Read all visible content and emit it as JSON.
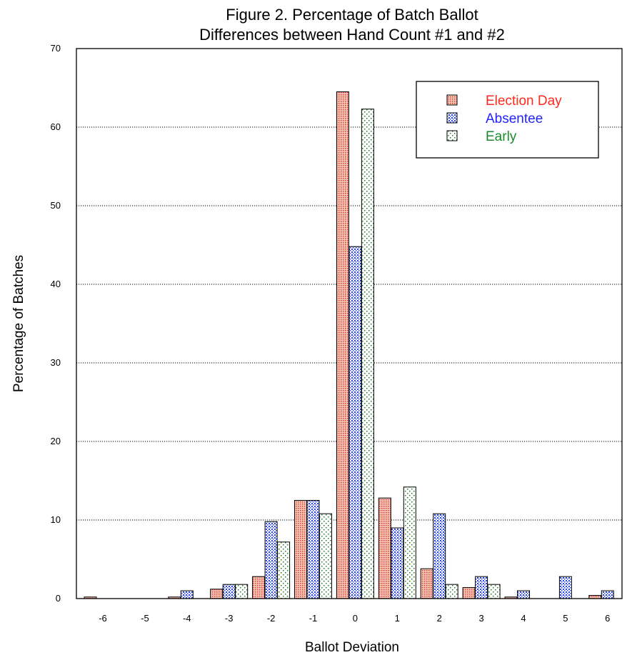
{
  "chart_data": {
    "type": "bar",
    "title": [
      "Figure 2.  Percentage of Batch Ballot",
      "Differences between Hand Count #1 and #2"
    ],
    "xlabel": "Ballot Deviation",
    "ylabel": "Percentage of Batches",
    "categories": [
      "-6",
      "-5",
      "-4",
      "-3",
      "-2",
      "-1",
      "0",
      "1",
      "2",
      "3",
      "4",
      "5",
      "6"
    ],
    "ylim": [
      0,
      70
    ],
    "yticks": [
      0,
      10,
      20,
      30,
      40,
      50,
      60,
      70
    ],
    "grid": "horizontal dotted",
    "legend_position": "top-right",
    "series": [
      {
        "name": "Election Day",
        "color": "#e34a33",
        "text_color": "#ff2a1a",
        "pattern": "dense-dots",
        "values": [
          0.2,
          0,
          0.2,
          1.2,
          2.8,
          12.5,
          64.5,
          12.8,
          3.8,
          1.4,
          0.2,
          0,
          0.4
        ]
      },
      {
        "name": "Absentee",
        "color": "#1f3fd6",
        "text_color": "#2323ff",
        "pattern": "medium-dots",
        "values": [
          0,
          0,
          1.0,
          1.8,
          9.8,
          12.5,
          44.8,
          9.0,
          10.8,
          2.8,
          1.0,
          2.8,
          1.0
        ]
      },
      {
        "name": "Early",
        "color": "#1f7a2e",
        "text_color": "#1a8a2a",
        "pattern": "sparse-dots",
        "values": [
          0,
          0,
          0,
          1.8,
          7.2,
          10.8,
          62.3,
          14.2,
          1.8,
          1.8,
          0,
          0,
          0
        ]
      }
    ]
  }
}
